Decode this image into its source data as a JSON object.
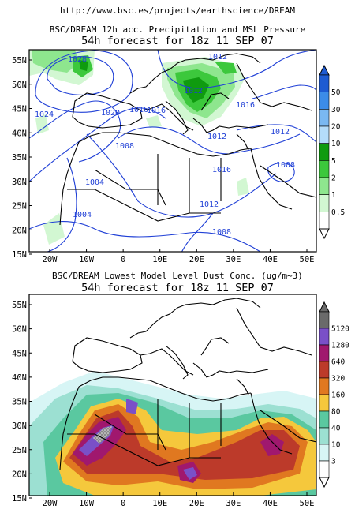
{
  "header": {
    "url": "http://www.bsc.es/projects/earthscience/DREAM"
  },
  "panel_top": {
    "title_line1": "BSC/DREAM 12h acc. Precipitation and MSL Pressure",
    "title_line2": "54h forecast for 18z 11 SEP 07",
    "lat_labels": [
      "55N",
      "50N",
      "45N",
      "40N",
      "35N",
      "30N",
      "25N",
      "20N",
      "15N"
    ],
    "lon_labels": [
      "20W",
      "10W",
      "0",
      "10E",
      "20E",
      "30E",
      "40E",
      "50E"
    ],
    "isobar_labels": [
      {
        "text": "1028"
      },
      {
        "text": "1012"
      },
      {
        "text": "1024"
      },
      {
        "text": "1020"
      },
      {
        "text": "1016"
      },
      {
        "text": "1016"
      },
      {
        "text": "1012"
      },
      {
        "text": "1012"
      },
      {
        "text": "1008"
      },
      {
        "text": "1016"
      },
      {
        "text": "1008"
      },
      {
        "text": "1004"
      },
      {
        "text": "1012"
      },
      {
        "text": "1004"
      },
      {
        "text": "1008"
      },
      {
        "text": "1016"
      },
      {
        "text": "1012"
      }
    ],
    "colorbar": {
      "labels": [
        "50",
        "30",
        "20",
        "10",
        "5",
        "2",
        "1",
        "0.5"
      ],
      "colors": [
        "#1e5bd2",
        "#3c8ce8",
        "#7ab8f2",
        "#b4dcfa",
        "#0f9b0f",
        "#3cc83c",
        "#8ee68e",
        "#d2f7d2",
        "#ffffff"
      ]
    }
  },
  "panel_bottom": {
    "title_line1": "BSC/DREAM Lowest Model Level Dust Conc. (ug/m~3)",
    "title_line2": "54h forecast for 18z 11 SEP 07",
    "lat_labels": [
      "55N",
      "50N",
      "45N",
      "40N",
      "35N",
      "30N",
      "25N",
      "20N",
      "15N"
    ],
    "lon_labels": [
      "20W",
      "10W",
      "0",
      "10E",
      "20E",
      "30E",
      "40E",
      "50E"
    ],
    "colorbar": {
      "labels": [
        "5120",
        "1280",
        "640",
        "320",
        "160",
        "80",
        "40",
        "10",
        "3"
      ],
      "colors": [
        "#6a6a6a",
        "#7a50c8",
        "#a0186e",
        "#bc3a2a",
        "#e07820",
        "#f5c83c",
        "#5ac8a0",
        "#9ce0d2",
        "#d7f5f5",
        "#ffffff"
      ]
    }
  },
  "colors": {
    "isobar": "#1f3fd6",
    "land": "#000000",
    "frame": "#000000"
  }
}
